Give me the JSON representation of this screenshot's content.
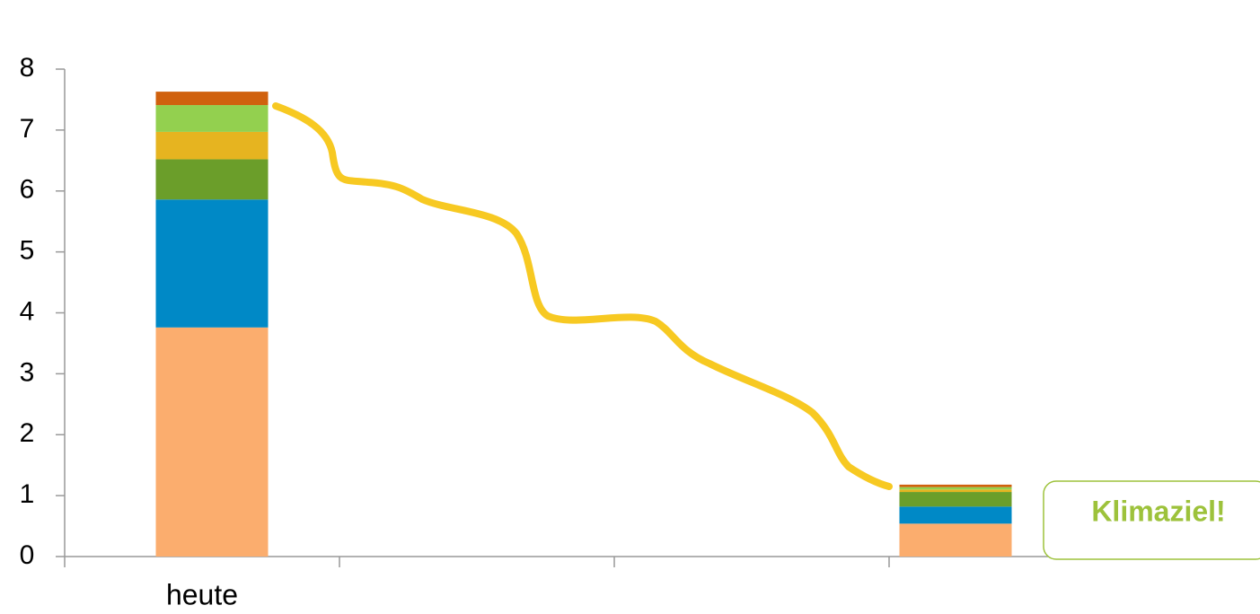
{
  "chart_data": {
    "type": "stacked-bar",
    "categories": [
      "heute",
      null,
      null,
      null
    ],
    "series": [
      {
        "color": "#fbad6e",
        "values": [
          3.76,
          null,
          null,
          0.54
        ]
      },
      {
        "color": "#0089c6",
        "values": [
          2.1,
          null,
          null,
          0.28
        ]
      },
      {
        "color": "#6b9e2a",
        "values": [
          0.66,
          null,
          null,
          0.24
        ]
      },
      {
        "color": "#e6b420",
        "values": [
          0.45,
          null,
          null,
          0.04
        ]
      },
      {
        "color": "#93d04f",
        "values": [
          0.44,
          null,
          null,
          0.04
        ]
      },
      {
        "color": "#d0610e",
        "values": [
          0.22,
          null,
          null,
          0.04
        ]
      }
    ],
    "ylim": [
      0,
      8
    ],
    "yticks": [
      0,
      1,
      2,
      3,
      4,
      5,
      6,
      7,
      8
    ],
    "annotation": "Klimaziel!"
  }
}
